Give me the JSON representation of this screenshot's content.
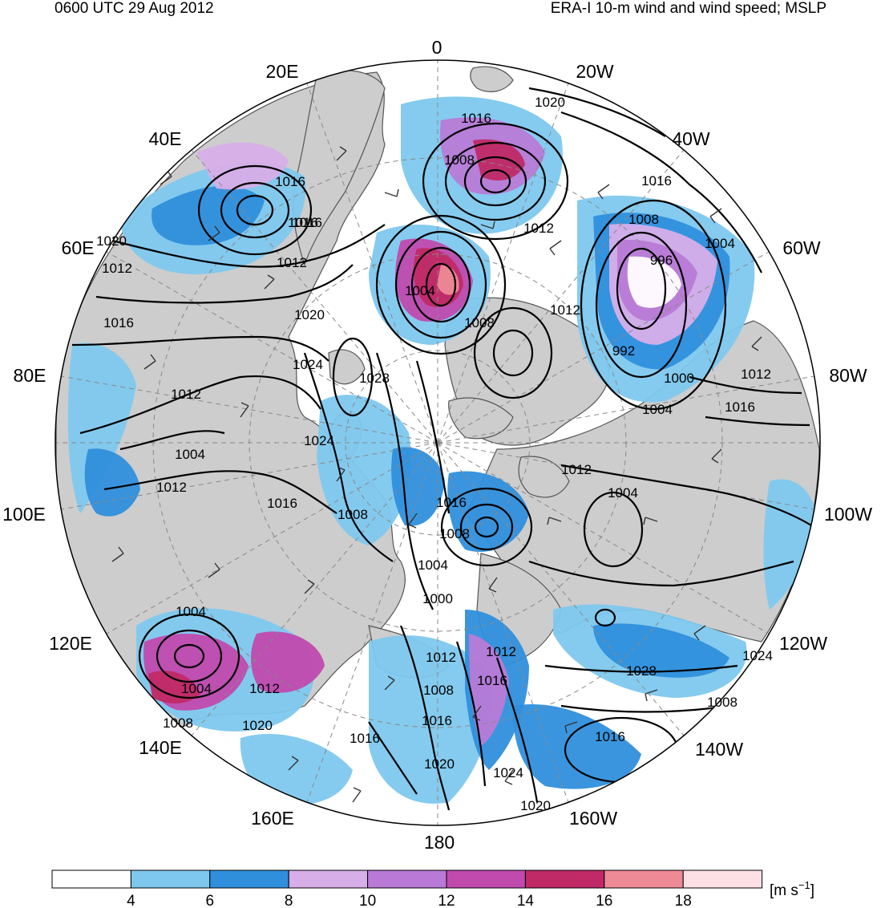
{
  "header": {
    "time_label": "0600 UTC 29 Aug 2012",
    "field_label": "ERA-I 10-m wind and wind speed; MSLP"
  },
  "longitude_labels": [
    "0",
    "20W",
    "40W",
    "60W",
    "80W",
    "100W",
    "120W",
    "140W",
    "160W",
    "180",
    "160E",
    "140E",
    "120E",
    "100E",
    "80E",
    "60E",
    "40E",
    "20E"
  ],
  "isobar_labels": [
    "1020",
    "1016",
    "1008",
    "1016",
    "1016",
    "1012",
    "1012",
    "1016",
    "1008",
    "1004",
    "996",
    "1004",
    "1008",
    "1012",
    "992",
    "1000",
    "1012",
    "1016",
    "1004",
    "1028",
    "1024",
    "1020",
    "1012",
    "1024",
    "1016",
    "1020",
    "1016",
    "1012",
    "1012",
    "1004",
    "1016",
    "1008",
    "1004",
    "1012",
    "1016",
    "1008",
    "1004",
    "1000",
    "1012",
    "1008",
    "1016",
    "1004",
    "1008",
    "1012",
    "1020",
    "1016",
    "1020",
    "1024",
    "1020",
    "1016",
    "1024",
    "1028",
    "1008",
    "1004",
    "1012",
    "1016"
  ],
  "colorbar": {
    "ticks": [
      "4",
      "6",
      "8",
      "10",
      "12",
      "14",
      "16",
      "18"
    ],
    "units_prefix": "[m s",
    "units_exponent": "−1",
    "units_suffix": "]",
    "colors": [
      "#ffffff",
      "#7ec8ee",
      "#2f8fdc",
      "#d7aee8",
      "#b87ad6",
      "#c04aae",
      "#c02a66",
      "#ee8a96",
      "#fde0e6"
    ]
  },
  "map_colors": {
    "land": "#cdcdcd",
    "ocean": "#ffffff",
    "coast": "#555555",
    "isobar": "#000000",
    "grid": "#888888"
  }
}
